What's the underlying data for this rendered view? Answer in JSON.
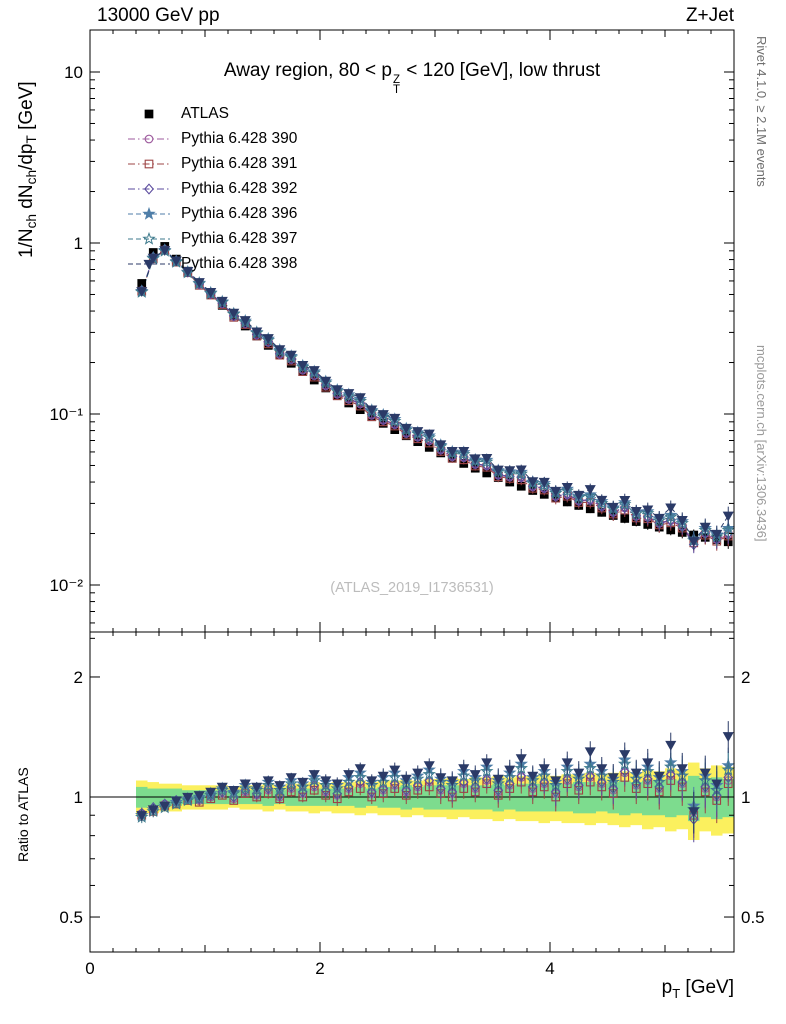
{
  "header": {
    "left": "13000 GeV pp",
    "right": "Z+Jet"
  },
  "title": {
    "prefix": "Away region, 80 < p",
    "sup": "Z",
    "sub": "T",
    "suffix": " < 120 [GeV], low thrust"
  },
  "watermark": "(ATLAS_2019_I1736531)",
  "side_notes": {
    "top": "Rivet 4.1.0, ≥ 2.1M events",
    "bottom": "mcplots.cern.ch [arXiv:1306.3436]"
  },
  "axes": {
    "y_top_label_parts": [
      [
        "1/N",
        "n"
      ],
      [
        "ch",
        "s"
      ],
      [
        " dN",
        "n"
      ],
      [
        "ch",
        "s"
      ],
      [
        "/dp",
        "n"
      ],
      [
        "T",
        "s"
      ],
      [
        " [GeV]",
        "n"
      ]
    ],
    "ratio_label": "Ratio to ATLAS",
    "x_label_base": "p",
    "x_label_sub": "T",
    "x_label_unit": " [GeV]",
    "y_ticks_top": [
      "10",
      "1",
      "10⁻¹",
      "10⁻²"
    ],
    "y_ticks_ratio": [
      "2",
      "1",
      "0.5"
    ],
    "x_ticks": [
      "0",
      "2",
      "4"
    ]
  },
  "chart_data": {
    "type": "scatter",
    "title": "Away region, 80 < pT^Z < 120 [GeV], low thrust",
    "xlabel": "pT [GeV]",
    "ylabel": "1/Nch dNch/dpT [GeV]",
    "ratio_ylabel": "Ratio to ATLAS",
    "y_scale": "log",
    "ratio_scale": "log",
    "x_range": [
      0,
      5.6
    ],
    "y_range_top": [
      0.0053,
      17.6
    ],
    "ratio_range": [
      0.41,
      2.59
    ],
    "y_tick_values": [
      10,
      1,
      0.1,
      0.01
    ],
    "ratio_tick_values": [
      2,
      1,
      0.5
    ],
    "x_tick_values": [
      0,
      2,
      4
    ],
    "band_colors": {
      "yellow": "#fbf05e",
      "green": "#7ddc8e"
    },
    "x": [
      0.45,
      0.55,
      0.65,
      0.75,
      0.85,
      0.95,
      1.05,
      1.15,
      1.25,
      1.35,
      1.45,
      1.55,
      1.65,
      1.75,
      1.85,
      1.95,
      2.05,
      2.15,
      2.25,
      2.35,
      2.45,
      2.55,
      2.65,
      2.75,
      2.85,
      2.95,
      3.05,
      3.15,
      3.25,
      3.35,
      3.45,
      3.55,
      3.65,
      3.75,
      3.85,
      3.95,
      4.05,
      4.15,
      4.25,
      4.35,
      4.45,
      4.55,
      4.65,
      4.75,
      4.85,
      4.95,
      5.05,
      5.15,
      5.25,
      5.35,
      5.45,
      5.55
    ],
    "atlas": {
      "label": "ATLAS",
      "color": "#000000",
      "marker": "square-filled",
      "values": [
        0.58,
        0.88,
        0.955,
        0.805,
        0.684,
        0.583,
        0.501,
        0.432,
        0.375,
        0.327,
        0.286,
        0.252,
        0.223,
        0.198,
        0.177,
        0.158,
        0.142,
        0.129,
        0.116,
        0.106,
        0.0964,
        0.0882,
        0.081,
        0.0746,
        0.0689,
        0.0638,
        0.0592,
        0.0551,
        0.0514,
        0.0482,
        0.0452,
        0.0425,
        0.04,
        0.0378,
        0.0357,
        0.0339,
        0.0322,
        0.0306,
        0.0292,
        0.0279,
        0.0266,
        0.0255,
        0.0245,
        0.0235,
        0.0226,
        0.0218,
        0.021,
        0.0203,
        0.0196,
        0.019,
        0.0184,
        0.0179
      ]
    },
    "err": [
      0.03,
      0.03,
      0.02,
      0.02,
      0.02,
      0.02,
      0.02,
      0.02,
      0.02,
      0.02,
      0.03,
      0.03,
      0.03,
      0.03,
      0.03,
      0.03,
      0.04,
      0.04,
      0.04,
      0.04,
      0.04,
      0.05,
      0.05,
      0.05,
      0.05,
      0.05,
      0.06,
      0.06,
      0.06,
      0.06,
      0.06,
      0.07,
      0.07,
      0.07,
      0.07,
      0.07,
      0.08,
      0.08,
      0.08,
      0.08,
      0.08,
      0.09,
      0.09,
      0.09,
      0.1,
      0.1,
      0.1,
      0.11,
      0.11,
      0.12,
      0.12,
      0.13
    ],
    "band_yellow": [
      0.1,
      0.09,
      0.08,
      0.08,
      0.07,
      0.07,
      0.07,
      0.07,
      0.06,
      0.07,
      0.07,
      0.08,
      0.07,
      0.08,
      0.08,
      0.09,
      0.08,
      0.09,
      0.09,
      0.1,
      0.09,
      0.1,
      0.1,
      0.11,
      0.1,
      0.11,
      0.11,
      0.12,
      0.11,
      0.12,
      0.12,
      0.13,
      0.12,
      0.13,
      0.13,
      0.14,
      0.13,
      0.14,
      0.14,
      0.15,
      0.14,
      0.15,
      0.16,
      0.15,
      0.17,
      0.16,
      0.18,
      0.17,
      0.22,
      0.18,
      0.2,
      0.19
    ],
    "band_green": [
      0.06,
      0.05,
      0.05,
      0.05,
      0.04,
      0.04,
      0.04,
      0.04,
      0.04,
      0.04,
      0.04,
      0.05,
      0.04,
      0.05,
      0.05,
      0.05,
      0.05,
      0.05,
      0.05,
      0.06,
      0.05,
      0.06,
      0.06,
      0.07,
      0.06,
      0.07,
      0.07,
      0.07,
      0.07,
      0.07,
      0.07,
      0.08,
      0.07,
      0.08,
      0.08,
      0.08,
      0.08,
      0.08,
      0.09,
      0.09,
      0.08,
      0.09,
      0.1,
      0.09,
      0.1,
      0.1,
      0.11,
      0.1,
      0.13,
      0.11,
      0.12,
      0.11
    ],
    "series": [
      {
        "id": "pythia-390",
        "label": "Pythia 6.428 390",
        "color": "#9d5a9d",
        "marker": "circle-open",
        "dash": "dashdot",
        "ratio": [
          0.91,
          0.93,
          0.96,
          0.97,
          0.99,
          0.98,
          1.0,
          1.02,
          0.99,
          1.03,
          1.01,
          1.04,
          1.0,
          1.05,
          1.02,
          1.06,
          1.03,
          1.01,
          1.05,
          1.08,
          1.02,
          1.04,
          1.07,
          1.03,
          1.06,
          1.09,
          1.04,
          1.02,
          1.08,
          1.05,
          1.1,
          1.03,
          1.07,
          1.12,
          1.05,
          1.08,
          1.02,
          1.1,
          1.06,
          1.12,
          1.08,
          1.04,
          1.15,
          1.07,
          1.1,
          1.05,
          1.13,
          1.08,
          0.92,
          1.05,
          1.0,
          1.1
        ]
      },
      {
        "id": "pythia-391",
        "label": "Pythia 6.428 391",
        "color": "#9d4444",
        "marker": "square-open",
        "dash": "dashdot",
        "ratio": [
          0.9,
          0.92,
          0.95,
          0.96,
          0.98,
          0.97,
          0.99,
          1.01,
          0.98,
          1.02,
          1.0,
          1.02,
          0.99,
          1.03,
          1.0,
          1.04,
          1.01,
          0.99,
          1.03,
          1.05,
          1.0,
          1.02,
          1.05,
          1.01,
          1.04,
          1.06,
          1.02,
          1.0,
          1.05,
          1.03,
          1.08,
          1.01,
          1.05,
          1.09,
          1.03,
          1.06,
          1.0,
          1.08,
          1.04,
          1.09,
          1.06,
          1.02,
          1.12,
          1.05,
          1.08,
          1.03,
          1.1,
          1.06,
          0.9,
          1.03,
          0.98,
          1.08
        ]
      },
      {
        "id": "pythia-392",
        "label": "Pythia 6.428 392",
        "color": "#5a4a9d",
        "marker": "diamond-open",
        "dash": "dashdot",
        "ratio": [
          0.91,
          0.94,
          0.96,
          0.98,
          0.99,
          0.99,
          1.01,
          1.03,
          1.0,
          1.04,
          1.02,
          1.05,
          1.01,
          1.06,
          1.03,
          1.07,
          1.04,
          1.02,
          1.06,
          1.09,
          1.03,
          1.05,
          1.08,
          1.04,
          1.07,
          1.1,
          1.05,
          1.03,
          1.09,
          1.06,
          1.11,
          1.04,
          1.08,
          1.13,
          1.06,
          1.09,
          1.03,
          1.11,
          1.07,
          1.13,
          1.09,
          1.05,
          1.16,
          1.08,
          1.11,
          1.06,
          1.14,
          1.09,
          0.88,
          1.06,
          1.01,
          1.12
        ]
      },
      {
        "id": "pythia-396",
        "label": "Pythia 6.428 396",
        "color": "#4f7ea8",
        "marker": "star-filled",
        "dash": "dashed",
        "ratio": [
          0.9,
          0.93,
          0.95,
          0.97,
          0.99,
          1.0,
          1.02,
          1.05,
          1.03,
          1.07,
          1.05,
          1.09,
          1.06,
          1.1,
          1.08,
          1.12,
          1.09,
          1.07,
          1.12,
          1.15,
          1.09,
          1.12,
          1.15,
          1.1,
          1.13,
          1.17,
          1.11,
          1.09,
          1.16,
          1.12,
          1.19,
          1.1,
          1.15,
          1.21,
          1.12,
          1.16,
          1.09,
          1.19,
          1.13,
          1.21,
          1.16,
          1.11,
          1.24,
          1.14,
          1.19,
          1.12,
          1.22,
          1.16,
          0.95,
          1.13,
          1.07,
          1.2
        ]
      },
      {
        "id": "pythia-397",
        "label": "Pythia 6.428 397",
        "color": "#3d7a8c",
        "marker": "star-open",
        "dash": "dashed",
        "ratio": [
          0.89,
          0.92,
          0.94,
          0.96,
          0.98,
          0.99,
          1.01,
          1.04,
          1.02,
          1.05,
          1.04,
          1.07,
          1.04,
          1.08,
          1.06,
          1.1,
          1.07,
          1.05,
          1.09,
          1.12,
          1.07,
          1.09,
          1.12,
          1.08,
          1.11,
          1.14,
          1.09,
          1.07,
          1.13,
          1.1,
          1.16,
          1.08,
          1.12,
          1.18,
          1.1,
          1.13,
          1.07,
          1.16,
          1.11,
          1.18,
          1.13,
          1.09,
          1.21,
          1.11,
          1.16,
          1.09,
          1.19,
          1.13,
          0.93,
          1.1,
          1.04,
          1.17
        ]
      },
      {
        "id": "pythia-398",
        "label": "Pythia 6.428 398",
        "color": "#2b3a67",
        "marker": "triangle-down-filled",
        "dash": "dashed",
        "ratio": [
          0.9,
          0.93,
          0.95,
          0.98,
          1.0,
          1.01,
          1.03,
          1.06,
          1.04,
          1.08,
          1.06,
          1.1,
          1.07,
          1.12,
          1.09,
          1.14,
          1.1,
          1.08,
          1.14,
          1.18,
          1.1,
          1.13,
          1.17,
          1.11,
          1.15,
          1.2,
          1.12,
          1.1,
          1.18,
          1.14,
          1.22,
          1.11,
          1.17,
          1.25,
          1.13,
          1.18,
          1.1,
          1.22,
          1.15,
          1.3,
          1.18,
          1.12,
          1.28,
          1.15,
          1.22,
          1.13,
          1.35,
          1.18,
          0.92,
          1.15,
          1.08,
          1.42
        ]
      }
    ]
  }
}
